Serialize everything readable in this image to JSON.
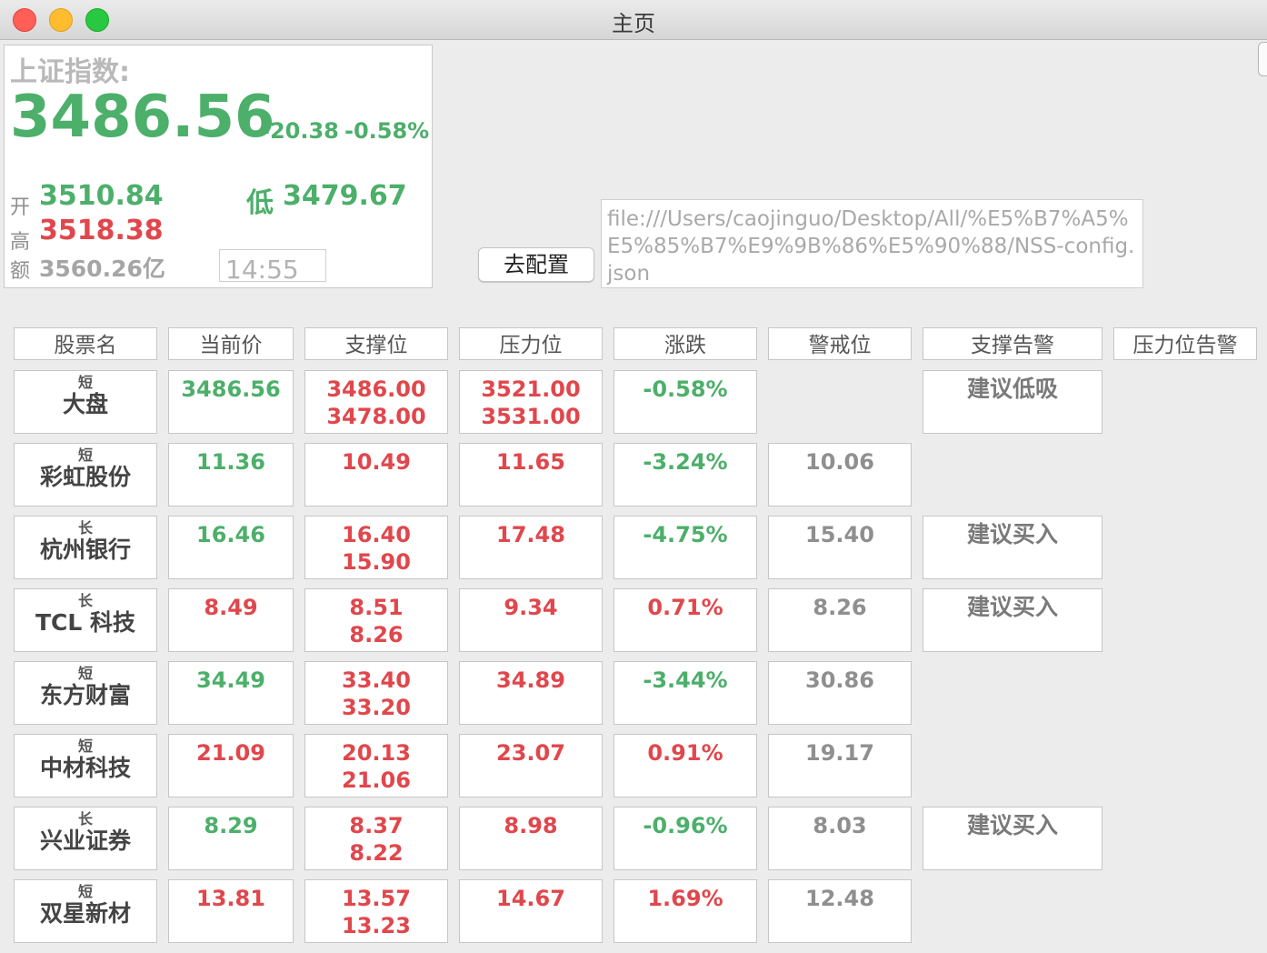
{
  "window": {
    "title": "主页"
  },
  "index": {
    "name": "上证指数:",
    "price": "3486.56",
    "change": "-20.38",
    "change_pct": "-0.58%",
    "open_label": "开",
    "open": "3510.84",
    "low_label": "低",
    "low": "3479.67",
    "high_label": "高",
    "high": "3518.38",
    "amount_label": "额",
    "amount": "3560.26亿",
    "time": "14:55"
  },
  "config": {
    "button_label": "去配置",
    "path": "file:///Users/caojinguo/Desktop/All/%E5%B7%A5%E5%85%B7%E9%9B%86%E5%90%88/NSS-config.json"
  },
  "colors": {
    "up": "#e0474c",
    "down": "#4caf6a",
    "neutral": "#8f8f8f"
  },
  "table": {
    "headers": [
      "股票名",
      "当前价",
      "支撑位",
      "压力位",
      "涨跌",
      "警戒位",
      "支撑告警",
      "压力位告警"
    ],
    "rows": [
      {
        "tag": "短",
        "name": "大盘",
        "price": "3486.56",
        "price_dir": "down",
        "support": [
          "3486.00",
          "3478.00"
        ],
        "pressure": [
          "3521.00",
          "3531.00"
        ],
        "change": "-0.58%",
        "change_dir": "down",
        "warn": "",
        "support_alert": "建议低吸",
        "pressure_alert": ""
      },
      {
        "tag": "短",
        "name": "彩虹股份",
        "price": "11.36",
        "price_dir": "down",
        "support": [
          "10.49",
          ""
        ],
        "pressure": [
          "11.65",
          ""
        ],
        "change": "-3.24%",
        "change_dir": "down",
        "warn": "10.06",
        "support_alert": "",
        "pressure_alert": ""
      },
      {
        "tag": "长",
        "name": "杭州银行",
        "price": "16.46",
        "price_dir": "down",
        "support": [
          "16.40",
          "15.90"
        ],
        "pressure": [
          "17.48",
          ""
        ],
        "change": "-4.75%",
        "change_dir": "down",
        "warn": "15.40",
        "support_alert": "建议买入",
        "pressure_alert": ""
      },
      {
        "tag": "长",
        "name": "TCL 科技",
        "price": "8.49",
        "price_dir": "up",
        "support": [
          "8.51",
          "8.26"
        ],
        "pressure": [
          "9.34",
          ""
        ],
        "change": "0.71%",
        "change_dir": "up",
        "warn": "8.26",
        "support_alert": "建议买入",
        "pressure_alert": ""
      },
      {
        "tag": "短",
        "name": "东方财富",
        "price": "34.49",
        "price_dir": "down",
        "support": [
          "33.40",
          "33.20"
        ],
        "pressure": [
          "34.89",
          ""
        ],
        "change": "-3.44%",
        "change_dir": "down",
        "warn": "30.86",
        "support_alert": "",
        "pressure_alert": ""
      },
      {
        "tag": "短",
        "name": "中材科技",
        "price": "21.09",
        "price_dir": "up",
        "support": [
          "20.13",
          "21.06"
        ],
        "pressure": [
          "23.07",
          ""
        ],
        "change": "0.91%",
        "change_dir": "up",
        "warn": "19.17",
        "support_alert": "",
        "pressure_alert": ""
      },
      {
        "tag": "长",
        "name": "兴业证券",
        "price": "8.29",
        "price_dir": "down",
        "support": [
          "8.37",
          "8.22"
        ],
        "pressure": [
          "8.98",
          ""
        ],
        "change": "-0.96%",
        "change_dir": "down",
        "warn": "8.03",
        "support_alert": "建议买入",
        "pressure_alert": ""
      },
      {
        "tag": "短",
        "name": "双星新材",
        "price": "13.81",
        "price_dir": "up",
        "support": [
          "13.57",
          "13.23"
        ],
        "pressure": [
          "14.67",
          ""
        ],
        "change": "1.69%",
        "change_dir": "up",
        "warn": "12.48",
        "support_alert": "",
        "pressure_alert": ""
      }
    ]
  }
}
